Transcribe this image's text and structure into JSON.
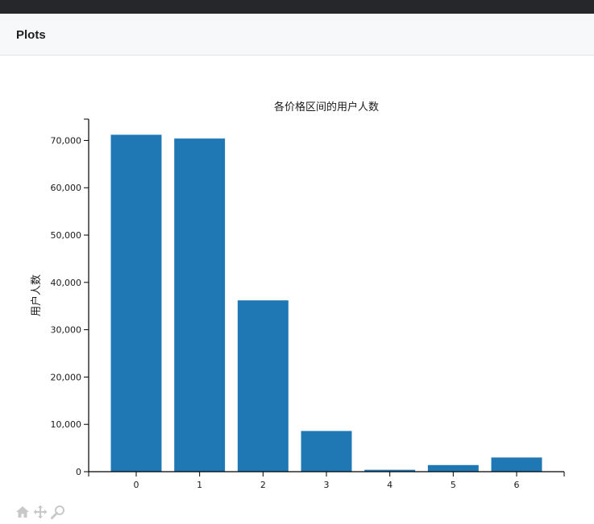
{
  "panel": {
    "title": "Plots"
  },
  "toolbar": {
    "icons": [
      "home-icon",
      "pan-icon",
      "zoom-icon"
    ]
  },
  "chart_data": {
    "type": "bar",
    "title": "各价格区间的用户人数",
    "xlabel": "",
    "ylabel": "用户人数",
    "categories": [
      "0",
      "1",
      "2",
      "3",
      "4",
      "5",
      "6"
    ],
    "values": [
      71200,
      70400,
      36200,
      8600,
      400,
      1400,
      3000
    ],
    "yticks": [
      0,
      10000,
      20000,
      30000,
      40000,
      50000,
      60000,
      70000
    ],
    "ytick_labels": [
      "0",
      "10,000",
      "20,000",
      "30,000",
      "40,000",
      "50,000",
      "60,000",
      "70,000"
    ],
    "ylim": [
      0,
      74500
    ],
    "xlim": [
      -0.75,
      6.75
    ],
    "bar_color": "#1f77b4",
    "grid": false
  }
}
